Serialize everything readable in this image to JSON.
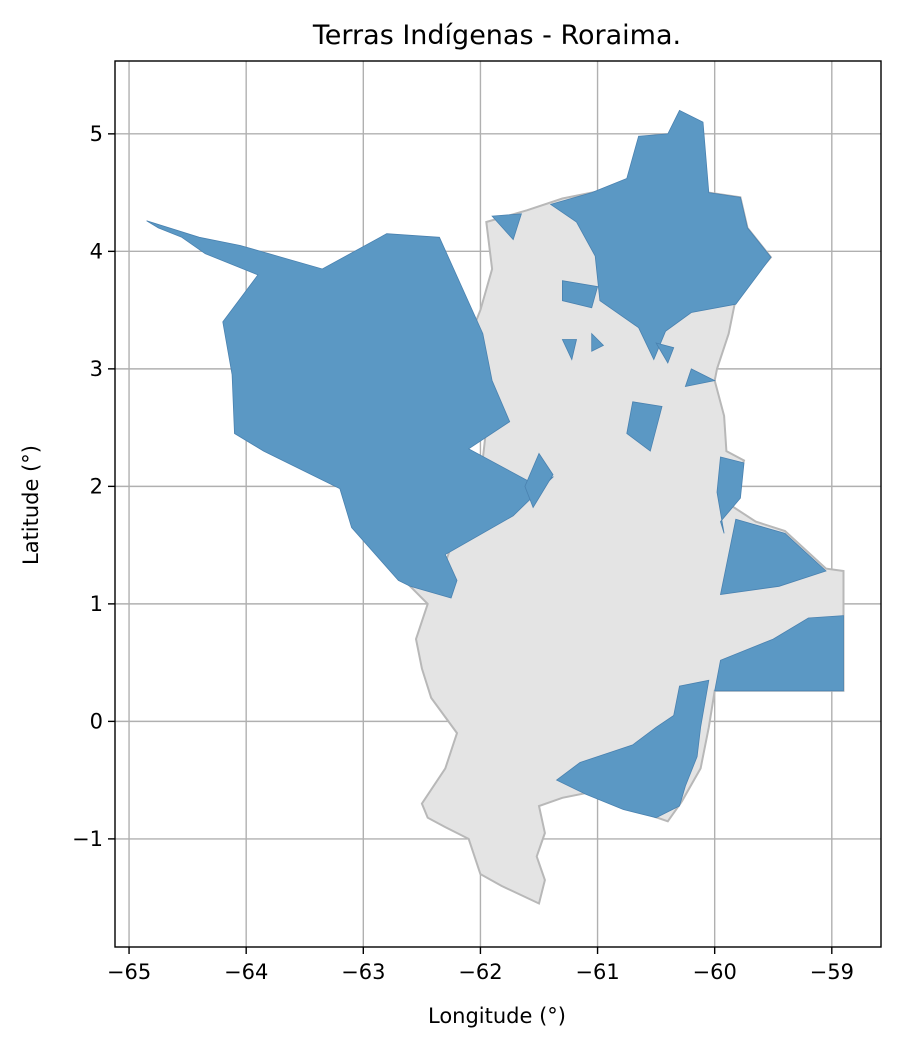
{
  "chart_data": {
    "type": "map",
    "title": "Terras Indígenas - Roraima.",
    "xlabel": "Longitude (°)",
    "ylabel": "Latitude (°)",
    "xlim": [
      -65.12,
      -58.58
    ],
    "ylim": [
      -1.92,
      5.62
    ],
    "xticks": [
      -65,
      -64,
      -63,
      -62,
      -61,
      -60,
      -59
    ],
    "yticks": [
      -1,
      0,
      1,
      2,
      3,
      4,
      5
    ],
    "xtick_labels": [
      "−65",
      "−64",
      "−63",
      "−62",
      "−61",
      "−60",
      "−59"
    ],
    "ytick_labels": [
      "−1",
      "0",
      "1",
      "2",
      "3",
      "4",
      "5"
    ],
    "grid": true,
    "colors": {
      "state_fill": "#e4e4e4",
      "state_edge": "#b8b8b8",
      "indigenous_land_fill": "#5b98c4",
      "grid": "#b0b0b0"
    },
    "layers": {
      "state_outline": {
        "coords": [
          [
            -61.95,
            4.25
          ],
          [
            -61.6,
            4.35
          ],
          [
            -61.3,
            4.45
          ],
          [
            -61.05,
            4.5
          ],
          [
            -60.75,
            4.55
          ],
          [
            -60.4,
            4.5
          ],
          [
            -60.25,
            4.6
          ],
          [
            -60.05,
            4.5
          ],
          [
            -59.78,
            4.46
          ],
          [
            -59.72,
            4.2
          ],
          [
            -59.52,
            3.95
          ],
          [
            -59.82,
            3.6
          ],
          [
            -59.88,
            3.3
          ],
          [
            -59.98,
            3.0
          ],
          [
            -60.0,
            2.9
          ],
          [
            -59.92,
            2.6
          ],
          [
            -59.9,
            2.3
          ],
          [
            -59.75,
            2.22
          ],
          [
            -59.88,
            1.85
          ],
          [
            -59.65,
            1.7
          ],
          [
            -59.4,
            1.62
          ],
          [
            -59.05,
            1.3
          ],
          [
            -58.9,
            1.28
          ],
          [
            -58.9,
            0.26
          ],
          [
            -60.0,
            0.26
          ],
          [
            -60.05,
            -0.05
          ],
          [
            -60.12,
            -0.4
          ],
          [
            -60.28,
            -0.68
          ],
          [
            -60.4,
            -0.85
          ],
          [
            -60.78,
            -0.72
          ],
          [
            -61.05,
            -0.6
          ],
          [
            -61.3,
            -0.65
          ],
          [
            -61.5,
            -0.72
          ],
          [
            -61.45,
            -0.95
          ],
          [
            -61.52,
            -1.15
          ],
          [
            -61.45,
            -1.35
          ],
          [
            -61.5,
            -1.55
          ],
          [
            -61.82,
            -1.4
          ],
          [
            -62.0,
            -1.3
          ],
          [
            -62.1,
            -1.0
          ],
          [
            -62.3,
            -0.9
          ],
          [
            -62.45,
            -0.82
          ],
          [
            -62.5,
            -0.7
          ],
          [
            -62.3,
            -0.4
          ],
          [
            -62.2,
            -0.1
          ],
          [
            -62.42,
            0.2
          ],
          [
            -62.5,
            0.45
          ],
          [
            -62.55,
            0.7
          ],
          [
            -62.45,
            1.0
          ],
          [
            -62.6,
            1.15
          ],
          [
            -62.7,
            1.25
          ],
          [
            -62.3,
            1.35
          ],
          [
            -62.1,
            1.9
          ],
          [
            -62.0,
            2.05
          ],
          [
            -61.95,
            2.5
          ],
          [
            -62.2,
            3.0
          ],
          [
            -62.0,
            3.5
          ],
          [
            -61.9,
            3.85
          ],
          [
            -61.95,
            4.25
          ]
        ]
      },
      "indigenous_lands": [
        {
          "coords": [
            [
              -64.85,
              4.26
            ],
            [
              -64.4,
              4.12
            ],
            [
              -64.05,
              4.05
            ],
            [
              -63.7,
              3.95
            ],
            [
              -63.35,
              3.85
            ],
            [
              -62.8,
              4.15
            ],
            [
              -62.35,
              4.12
            ],
            [
              -61.98,
              3.3
            ],
            [
              -61.9,
              2.9
            ],
            [
              -61.75,
              2.55
            ],
            [
              -62.1,
              2.32
            ],
            [
              -61.6,
              2.05
            ],
            [
              -61.38,
              2.08
            ],
            [
              -61.72,
              1.75
            ],
            [
              -62.3,
              1.42
            ],
            [
              -62.2,
              1.2
            ],
            [
              -62.25,
              1.05
            ],
            [
              -62.6,
              1.15
            ],
            [
              -62.7,
              1.2
            ],
            [
              -63.1,
              1.65
            ],
            [
              -63.2,
              1.98
            ],
            [
              -63.85,
              2.3
            ],
            [
              -64.1,
              2.45
            ],
            [
              -64.12,
              2.95
            ],
            [
              -64.2,
              3.4
            ],
            [
              -63.9,
              3.8
            ],
            [
              -64.35,
              3.98
            ],
            [
              -64.55,
              4.12
            ],
            [
              -64.75,
              4.2
            ],
            [
              -64.85,
              4.26
            ]
          ]
        },
        {
          "coords": [
            [
              -61.4,
              4.4
            ],
            [
              -61.05,
              4.5
            ],
            [
              -60.75,
              4.62
            ],
            [
              -60.65,
              4.98
            ],
            [
              -60.4,
              5.0
            ],
            [
              -60.3,
              5.2
            ],
            [
              -60.1,
              5.1
            ],
            [
              -60.05,
              4.5
            ],
            [
              -59.78,
              4.46
            ],
            [
              -59.72,
              4.2
            ],
            [
              -59.52,
              3.95
            ],
            [
              -59.82,
              3.55
            ],
            [
              -60.2,
              3.48
            ],
            [
              -60.42,
              3.32
            ],
            [
              -60.52,
              3.08
            ],
            [
              -60.65,
              3.35
            ],
            [
              -60.98,
              3.58
            ],
            [
              -61.02,
              3.96
            ],
            [
              -61.18,
              4.25
            ],
            [
              -61.4,
              4.4
            ]
          ]
        },
        {
          "coords": [
            [
              -59.95,
              2.25
            ],
            [
              -59.75,
              2.2
            ],
            [
              -59.78,
              1.9
            ],
            [
              -59.95,
              1.7
            ],
            [
              -59.92,
              1.6
            ],
            [
              -59.98,
              1.95
            ],
            [
              -59.95,
              2.25
            ]
          ]
        },
        {
          "coords": [
            [
              -59.82,
              1.72
            ],
            [
              -59.4,
              1.6
            ],
            [
              -59.05,
              1.28
            ],
            [
              -59.45,
              1.15
            ],
            [
              -59.95,
              1.08
            ],
            [
              -59.82,
              1.72
            ]
          ]
        },
        {
          "coords": [
            [
              -58.9,
              0.9
            ],
            [
              -59.2,
              0.88
            ],
            [
              -59.5,
              0.7
            ],
            [
              -59.95,
              0.52
            ],
            [
              -60.0,
              0.26
            ],
            [
              -58.9,
              0.26
            ],
            [
              -58.9,
              0.9
            ]
          ]
        },
        {
          "coords": [
            [
              -60.05,
              0.35
            ],
            [
              -60.3,
              0.3
            ],
            [
              -60.35,
              0.05
            ],
            [
              -60.5,
              -0.05
            ],
            [
              -60.7,
              -0.2
            ],
            [
              -61.15,
              -0.35
            ],
            [
              -61.35,
              -0.5
            ],
            [
              -61.1,
              -0.62
            ],
            [
              -60.78,
              -0.75
            ],
            [
              -60.5,
              -0.82
            ],
            [
              -60.3,
              -0.72
            ],
            [
              -60.25,
              -0.55
            ],
            [
              -60.15,
              -0.3
            ],
            [
              -60.12,
              -0.05
            ],
            [
              -60.05,
              0.35
            ]
          ]
        },
        {
          "coords": [
            [
              -60.7,
              2.72
            ],
            [
              -60.45,
              2.68
            ],
            [
              -60.55,
              2.3
            ],
            [
              -60.75,
              2.45
            ],
            [
              -60.7,
              2.72
            ]
          ]
        },
        {
          "coords": [
            [
              -61.9,
              4.3
            ],
            [
              -61.65,
              4.32
            ],
            [
              -61.72,
              4.1
            ],
            [
              -61.9,
              4.3
            ]
          ]
        },
        {
          "coords": [
            [
              -61.3,
              3.75
            ],
            [
              -61.0,
              3.7
            ],
            [
              -61.05,
              3.52
            ],
            [
              -61.3,
              3.58
            ],
            [
              -61.3,
              3.75
            ]
          ]
        },
        {
          "coords": [
            [
              -61.3,
              3.25
            ],
            [
              -61.18,
              3.25
            ],
            [
              -61.22,
              3.08
            ],
            [
              -61.3,
              3.25
            ]
          ]
        },
        {
          "coords": [
            [
              -61.05,
              3.3
            ],
            [
              -60.95,
              3.2
            ],
            [
              -61.05,
              3.15
            ],
            [
              -61.05,
              3.3
            ]
          ]
        },
        {
          "coords": [
            [
              -60.5,
              3.22
            ],
            [
              -60.35,
              3.18
            ],
            [
              -60.4,
              3.05
            ],
            [
              -60.5,
              3.22
            ]
          ]
        },
        {
          "coords": [
            [
              -60.2,
              3.0
            ],
            [
              -60.0,
              2.9
            ],
            [
              -60.25,
              2.85
            ],
            [
              -60.2,
              3.0
            ]
          ]
        },
        {
          "coords": [
            [
              -61.5,
              2.28
            ],
            [
              -61.38,
              2.1
            ],
            [
              -61.55,
              1.82
            ],
            [
              -61.62,
              2.0
            ],
            [
              -61.5,
              2.28
            ]
          ]
        }
      ]
    }
  }
}
